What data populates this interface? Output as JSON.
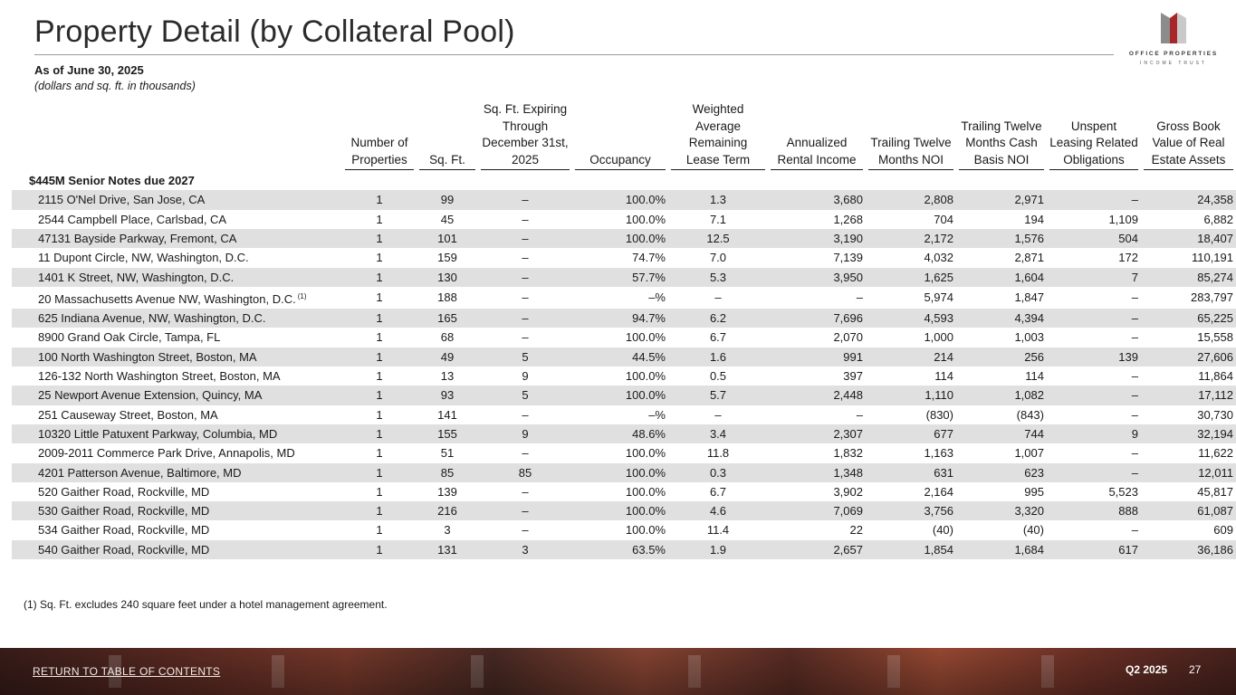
{
  "header": {
    "title": "Property Detail (by Collateral Pool)",
    "as_of": "As of June 30, 2025",
    "units_note": "(dollars and sq. ft. in thousands)"
  },
  "logo": {
    "line1": "OFFICE PROPERTIES",
    "line2": "INCOME TRUST",
    "colors": {
      "dark": "#8c8c8c",
      "red": "#a8262a",
      "mid": "#c9c9c9"
    }
  },
  "table": {
    "columns": [
      "Number of Properties",
      "Sq. Ft.",
      "Sq. Ft. Expiring Through December 31st, 2025",
      "Occupancy",
      "Weighted Average Remaining Lease Term",
      "Annualized Rental Income",
      "Trailing Twelve Months NOI",
      "Trailing Twelve Months Cash Basis NOI",
      "Unspent Leasing Related Obligations",
      "Gross Book Value of Real Estate Assets"
    ],
    "section_label": "$445M Senior Notes due 2027",
    "rows": [
      {
        "name": "2115 O'Nel Drive, San Jose, CA",
        "fn": "",
        "props": "1",
        "sqft": "99",
        "expiring": "–",
        "occupancy": "100.0%",
        "term": "1.3",
        "income": "3,680",
        "noi": "2,808",
        "cash_noi": "2,971",
        "obligations": "–",
        "gross_book": "24,358"
      },
      {
        "name": "2544 Campbell Place, Carlsbad, CA",
        "fn": "",
        "props": "1",
        "sqft": "45",
        "expiring": "–",
        "occupancy": "100.0%",
        "term": "7.1",
        "income": "1,268",
        "noi": "704",
        "cash_noi": "194",
        "obligations": "1,109",
        "gross_book": "6,882"
      },
      {
        "name": "47131 Bayside Parkway, Fremont, CA",
        "fn": "",
        "props": "1",
        "sqft": "101",
        "expiring": "–",
        "occupancy": "100.0%",
        "term": "12.5",
        "income": "3,190",
        "noi": "2,172",
        "cash_noi": "1,576",
        "obligations": "504",
        "gross_book": "18,407"
      },
      {
        "name": "11 Dupont Circle, NW, Washington, D.C.",
        "fn": "",
        "props": "1",
        "sqft": "159",
        "expiring": "–",
        "occupancy": "74.7%",
        "term": "7.0",
        "income": "7,139",
        "noi": "4,032",
        "cash_noi": "2,871",
        "obligations": "172",
        "gross_book": "110,191"
      },
      {
        "name": "1401 K Street, NW, Washington, D.C.",
        "fn": "",
        "props": "1",
        "sqft": "130",
        "expiring": "–",
        "occupancy": "57.7%",
        "term": "5.3",
        "income": "3,950",
        "noi": "1,625",
        "cash_noi": "1,604",
        "obligations": "7",
        "gross_book": "85,274"
      },
      {
        "name": "20 Massachusetts Avenue NW, Washington, D.C.",
        "fn": "(1)",
        "props": "1",
        "sqft": "188",
        "expiring": "–",
        "occupancy": "–%",
        "term": "–",
        "income": "–",
        "noi": "5,974",
        "cash_noi": "1,847",
        "obligations": "–",
        "gross_book": "283,797"
      },
      {
        "name": "625 Indiana Avenue, NW, Washington, D.C.",
        "fn": "",
        "props": "1",
        "sqft": "165",
        "expiring": "–",
        "occupancy": "94.7%",
        "term": "6.2",
        "income": "7,696",
        "noi": "4,593",
        "cash_noi": "4,394",
        "obligations": "–",
        "gross_book": "65,225"
      },
      {
        "name": "8900 Grand Oak Circle, Tampa, FL",
        "fn": "",
        "props": "1",
        "sqft": "68",
        "expiring": "–",
        "occupancy": "100.0%",
        "term": "6.7",
        "income": "2,070",
        "noi": "1,000",
        "cash_noi": "1,003",
        "obligations": "–",
        "gross_book": "15,558"
      },
      {
        "name": "100 North Washington Street, Boston, MA",
        "fn": "",
        "props": "1",
        "sqft": "49",
        "expiring": "5",
        "occupancy": "44.5%",
        "term": "1.6",
        "income": "991",
        "noi": "214",
        "cash_noi": "256",
        "obligations": "139",
        "gross_book": "27,606"
      },
      {
        "name": "126-132 North Washington Street, Boston, MA",
        "fn": "",
        "props": "1",
        "sqft": "13",
        "expiring": "9",
        "occupancy": "100.0%",
        "term": "0.5",
        "income": "397",
        "noi": "114",
        "cash_noi": "114",
        "obligations": "–",
        "gross_book": "11,864"
      },
      {
        "name": "25 Newport Avenue Extension, Quincy, MA",
        "fn": "",
        "props": "1",
        "sqft": "93",
        "expiring": "5",
        "occupancy": "100.0%",
        "term": "5.7",
        "income": "2,448",
        "noi": "1,110",
        "cash_noi": "1,082",
        "obligations": "–",
        "gross_book": "17,112"
      },
      {
        "name": "251 Causeway Street, Boston, MA",
        "fn": "",
        "props": "1",
        "sqft": "141",
        "expiring": "–",
        "occupancy": "–%",
        "term": "–",
        "income": "–",
        "noi": "(830)",
        "cash_noi": "(843)",
        "obligations": "–",
        "gross_book": "30,730"
      },
      {
        "name": "10320 Little Patuxent Parkway, Columbia, MD",
        "fn": "",
        "props": "1",
        "sqft": "155",
        "expiring": "9",
        "occupancy": "48.6%",
        "term": "3.4",
        "income": "2,307",
        "noi": "677",
        "cash_noi": "744",
        "obligations": "9",
        "gross_book": "32,194"
      },
      {
        "name": "2009-2011 Commerce Park Drive, Annapolis, MD",
        "fn": "",
        "props": "1",
        "sqft": "51",
        "expiring": "–",
        "occupancy": "100.0%",
        "term": "11.8",
        "income": "1,832",
        "noi": "1,163",
        "cash_noi": "1,007",
        "obligations": "–",
        "gross_book": "11,622"
      },
      {
        "name": "4201 Patterson Avenue, Baltimore, MD",
        "fn": "",
        "props": "1",
        "sqft": "85",
        "expiring": "85",
        "occupancy": "100.0%",
        "term": "0.3",
        "income": "1,348",
        "noi": "631",
        "cash_noi": "623",
        "obligations": "–",
        "gross_book": "12,011"
      },
      {
        "name": "520 Gaither Road, Rockville, MD",
        "fn": "",
        "props": "1",
        "sqft": "139",
        "expiring": "–",
        "occupancy": "100.0%",
        "term": "6.7",
        "income": "3,902",
        "noi": "2,164",
        "cash_noi": "995",
        "obligations": "5,523",
        "gross_book": "45,817"
      },
      {
        "name": "530 Gaither Road, Rockville, MD",
        "fn": "",
        "props": "1",
        "sqft": "216",
        "expiring": "–",
        "occupancy": "100.0%",
        "term": "4.6",
        "income": "7,069",
        "noi": "3,756",
        "cash_noi": "3,320",
        "obligations": "888",
        "gross_book": "61,087"
      },
      {
        "name": "534 Gaither Road, Rockville, MD",
        "fn": "",
        "props": "1",
        "sqft": "3",
        "expiring": "–",
        "occupancy": "100.0%",
        "term": "11.4",
        "income": "22",
        "noi": "(40)",
        "cash_noi": "(40)",
        "obligations": "–",
        "gross_book": "609"
      },
      {
        "name": "540 Gaither Road, Rockville, MD",
        "fn": "",
        "props": "1",
        "sqft": "131",
        "expiring": "3",
        "occupancy": "63.5%",
        "term": "1.9",
        "income": "2,657",
        "noi": "1,854",
        "cash_noi": "1,684",
        "obligations": "617",
        "gross_book": "36,186"
      }
    ]
  },
  "footnote": "(1)  Sq. Ft. excludes 240 square feet under a hotel management agreement.",
  "footer": {
    "return_link": "RETURN TO TABLE OF CONTENTS",
    "quarter": "Q2 2025",
    "page_number": "27"
  }
}
